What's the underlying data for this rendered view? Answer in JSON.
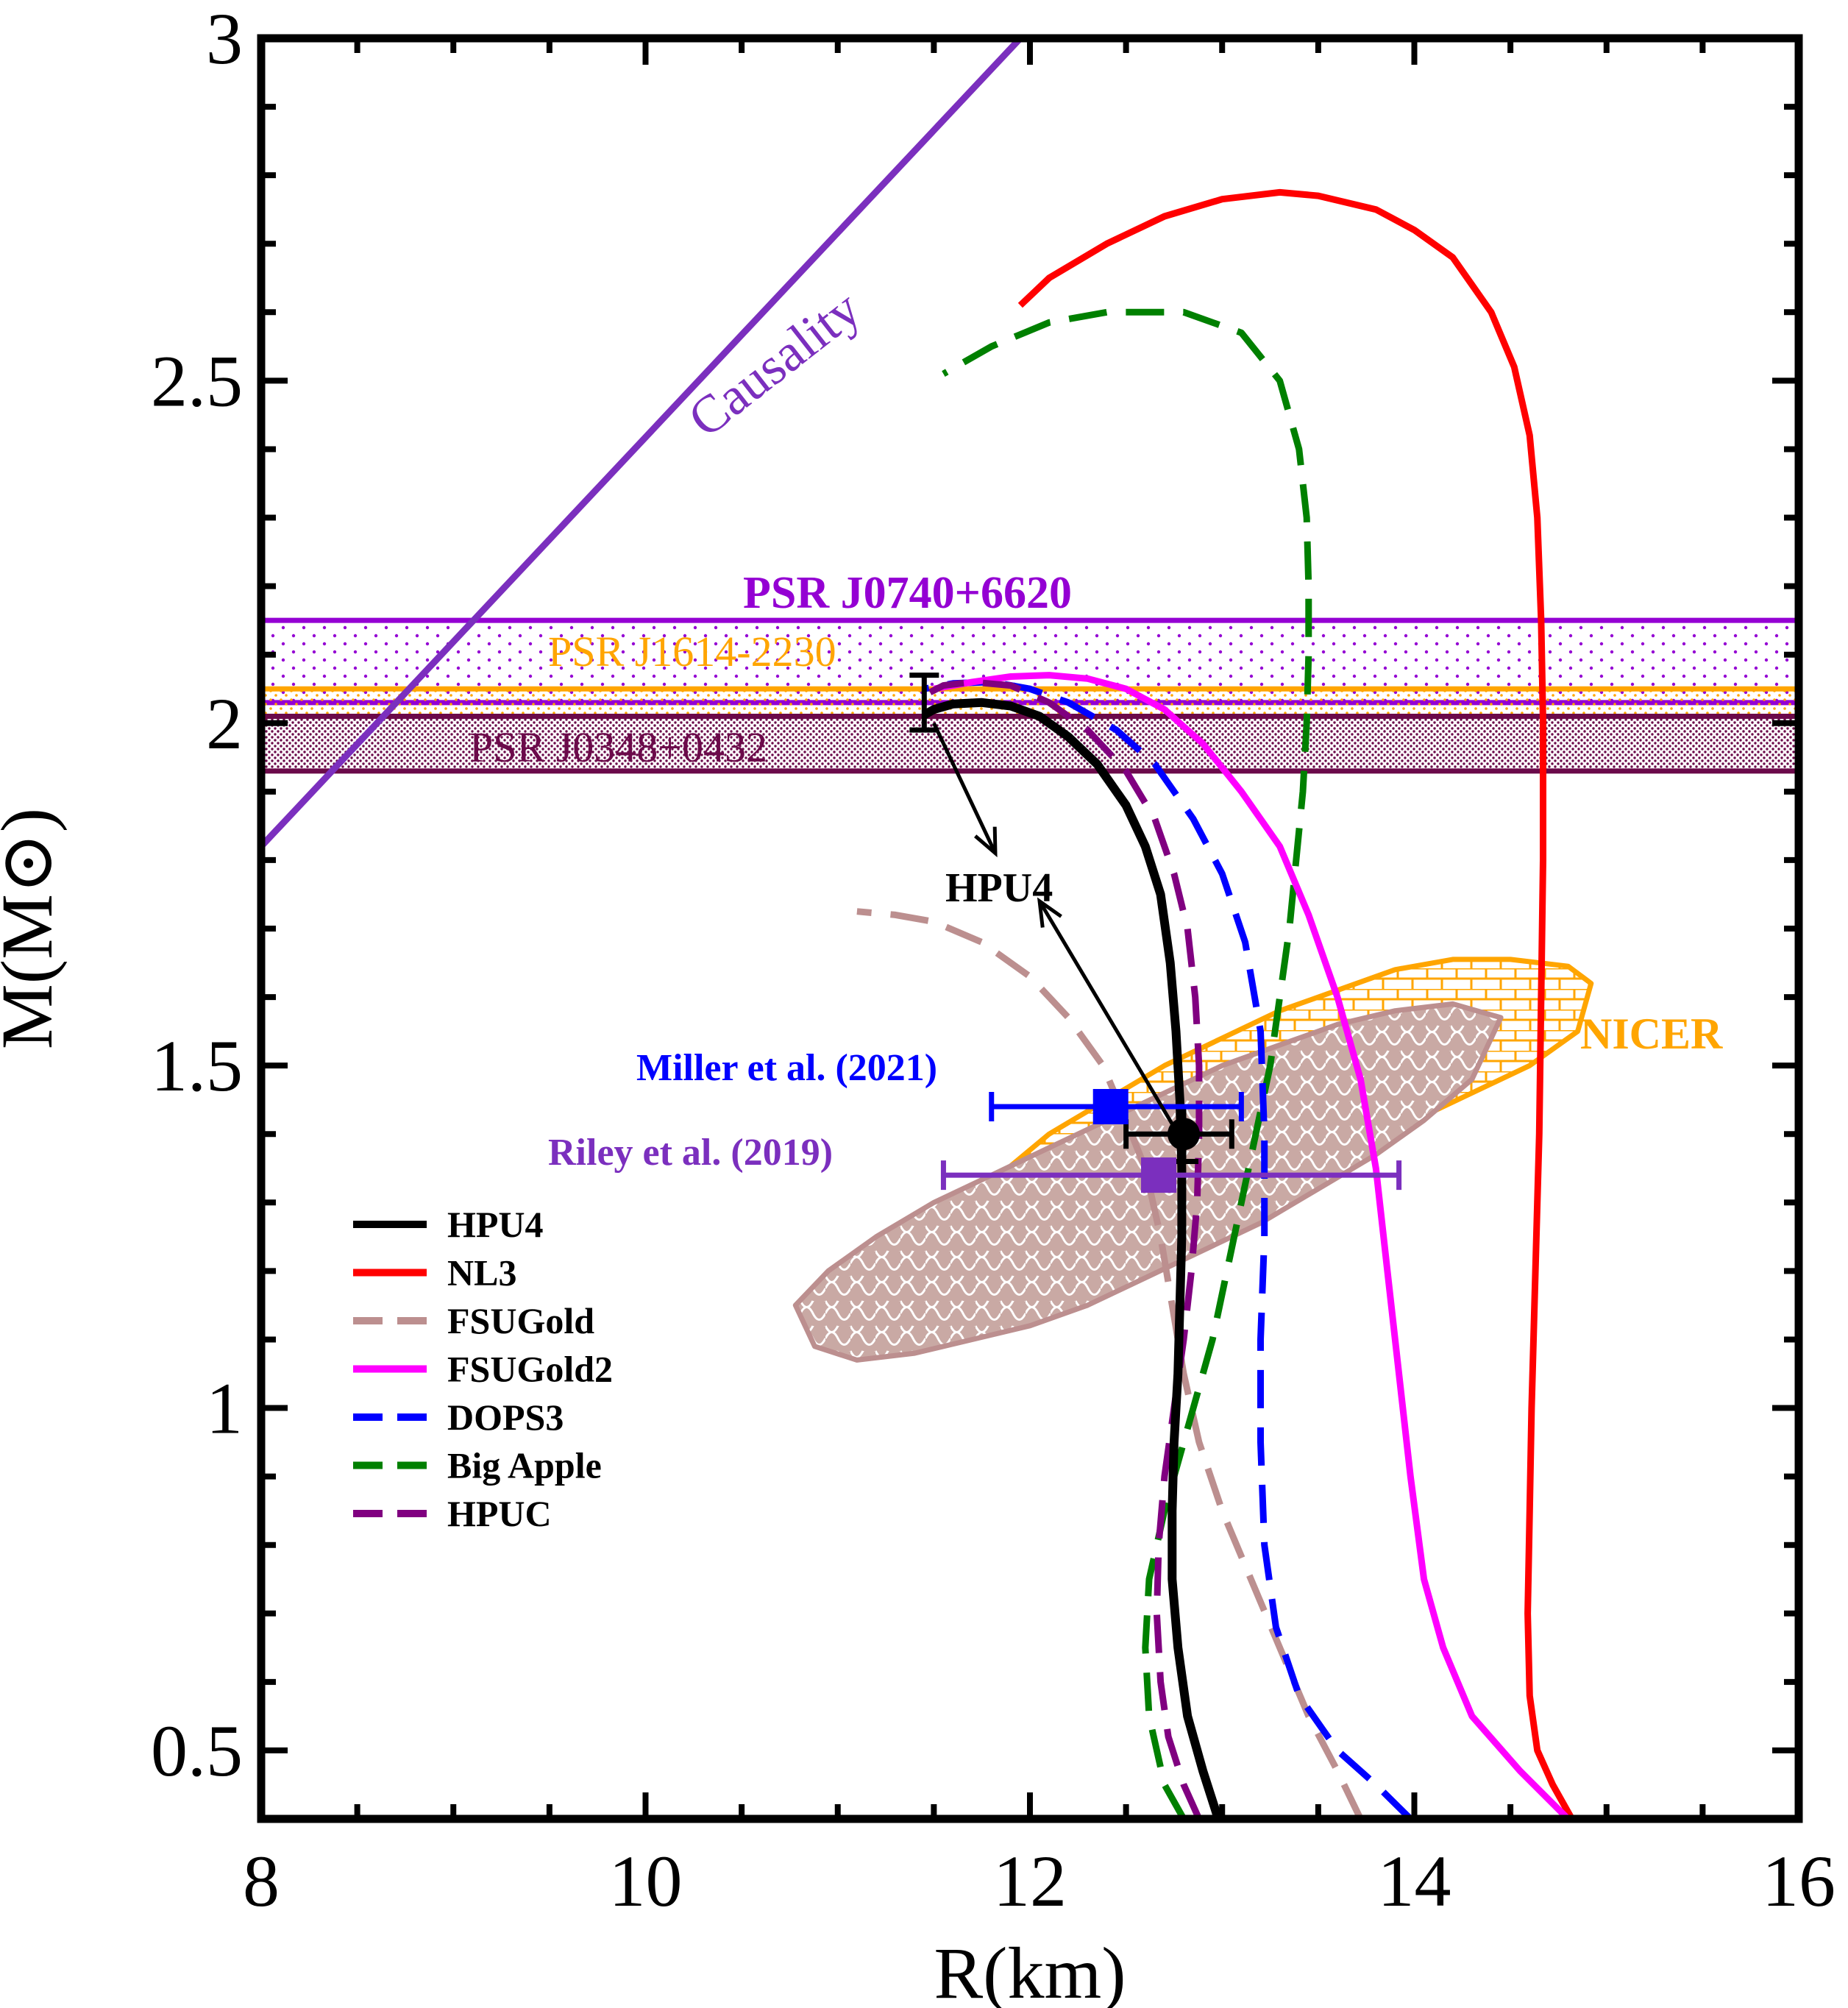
{
  "chart_data": {
    "type": "line",
    "xlabel": "R(km)",
    "ylabel": "M(M⊙)",
    "xlim": [
      8,
      16
    ],
    "ylim": [
      0.4,
      3.0
    ],
    "xticks": [
      "8",
      "10",
      "12",
      "14",
      "16"
    ],
    "yticks": [
      "0.5",
      "1",
      "1.5",
      "2",
      "2.5",
      "3"
    ],
    "grid": false,
    "legend_position": "bottom-left",
    "colors": {
      "HPU4": "#000000",
      "NL3": "#ff0000",
      "FSUGold": "#bc8f8f",
      "FSUGold2": "#ff00ff",
      "DOPS3": "#0000ff",
      "Big Apple": "#008000",
      "HPUC": "#800080",
      "causality": "#7b2fbe",
      "J0740": "#9400d3",
      "J1614": "#ffa500",
      "J0348": "#6b0a4a",
      "NICER": "#ffa500",
      "Miller": "#0000ff",
      "Riley": "#7b2fbe"
    },
    "series": [
      {
        "name": "HPU4",
        "style": "solid",
        "x": [
          12.98,
          12.9,
          12.82,
          12.77,
          12.74,
          12.74,
          12.75,
          12.77,
          12.78,
          12.79,
          12.79,
          12.78,
          12.76,
          12.73,
          12.68,
          12.6,
          12.5,
          12.35,
          12.2,
          12.05,
          11.9,
          11.75,
          11.6,
          11.5,
          11.45
        ],
        "y": [
          0.4,
          0.47,
          0.55,
          0.65,
          0.75,
          0.85,
          0.95,
          1.05,
          1.15,
          1.25,
          1.35,
          1.45,
          1.55,
          1.65,
          1.75,
          1.82,
          1.88,
          1.94,
          1.98,
          2.01,
          2.025,
          2.03,
          2.028,
          2.02,
          2.012
        ]
      },
      {
        "name": "NL3",
        "style": "solid",
        "x": [
          14.82,
          14.72,
          14.64,
          14.6,
          14.59,
          14.6,
          14.61,
          14.63,
          14.65,
          14.66,
          14.67,
          14.67,
          14.66,
          14.64,
          14.6,
          14.52,
          14.4,
          14.2,
          14.0,
          13.8,
          13.5,
          13.3,
          13.0,
          12.7,
          12.4,
          12.1,
          11.95
        ],
        "y": [
          0.4,
          0.45,
          0.5,
          0.58,
          0.7,
          0.85,
          1.0,
          1.2,
          1.4,
          1.6,
          1.8,
          2.0,
          2.15,
          2.3,
          2.42,
          2.52,
          2.6,
          2.68,
          2.72,
          2.75,
          2.77,
          2.775,
          2.765,
          2.74,
          2.7,
          2.65,
          2.61
        ]
      },
      {
        "name": "FSUGold",
        "style": "dashed",
        "x": [
          13.72,
          13.6,
          13.45,
          13.3,
          13.15,
          13.0,
          12.88,
          12.8,
          12.74,
          12.68,
          12.6,
          12.5,
          12.38,
          12.2,
          12.0,
          11.75,
          11.5,
          11.3,
          11.1
        ],
        "y": [
          0.4,
          0.47,
          0.55,
          0.65,
          0.75,
          0.85,
          0.95,
          1.05,
          1.15,
          1.25,
          1.35,
          1.42,
          1.5,
          1.57,
          1.63,
          1.68,
          1.71,
          1.72,
          1.725
        ]
      },
      {
        "name": "FSUGold2",
        "style": "solid",
        "x": [
          14.8,
          14.55,
          14.3,
          14.15,
          14.05,
          13.98,
          13.92,
          13.86,
          13.8,
          13.72,
          13.6,
          13.45,
          13.3,
          13.1,
          12.9,
          12.7,
          12.5,
          12.3,
          12.1,
          11.9,
          11.7,
          11.5
        ],
        "y": [
          0.4,
          0.47,
          0.55,
          0.65,
          0.75,
          0.9,
          1.05,
          1.2,
          1.35,
          1.48,
          1.6,
          1.72,
          1.82,
          1.9,
          1.97,
          2.02,
          2.05,
          2.065,
          2.07,
          2.068,
          2.06,
          2.05
        ]
      },
      {
        "name": "DOPS3",
        "style": "dashed",
        "x": [
          13.98,
          13.8,
          13.6,
          13.4,
          13.28,
          13.22,
          13.2,
          13.2,
          13.22,
          13.22,
          13.2,
          13.12,
          13.0,
          12.85,
          12.65,
          12.45,
          12.2,
          12.0,
          11.8,
          11.6,
          11.45
        ],
        "y": [
          0.4,
          0.45,
          0.5,
          0.58,
          0.68,
          0.8,
          0.95,
          1.1,
          1.25,
          1.4,
          1.55,
          1.68,
          1.78,
          1.86,
          1.94,
          1.99,
          2.03,
          2.05,
          2.06,
          2.058,
          2.05
        ]
      },
      {
        "name": "Big Apple",
        "style": "dashed",
        "x": [
          12.8,
          12.7,
          12.62,
          12.6,
          12.62,
          12.7,
          12.8,
          12.95,
          13.1,
          13.25,
          13.35,
          13.42,
          13.44,
          13.45,
          13.45,
          13.44,
          13.4,
          13.3,
          13.1,
          12.8,
          12.4,
          12.1,
          11.8,
          11.55
        ],
        "y": [
          0.4,
          0.45,
          0.55,
          0.65,
          0.75,
          0.85,
          0.95,
          1.1,
          1.3,
          1.5,
          1.7,
          1.9,
          2.0,
          2.1,
          2.2,
          2.3,
          2.4,
          2.5,
          2.57,
          2.6,
          2.6,
          2.585,
          2.55,
          2.51
        ]
      },
      {
        "name": "HPUC",
        "style": "dashed",
        "x": [
          12.88,
          12.8,
          12.72,
          12.68,
          12.66,
          12.67,
          12.7,
          12.75,
          12.8,
          12.84,
          12.87,
          12.88,
          12.88,
          12.86,
          12.82,
          12.75,
          12.65,
          12.5,
          12.3,
          12.1,
          11.9,
          11.7,
          11.55,
          11.48
        ],
        "y": [
          0.4,
          0.45,
          0.52,
          0.6,
          0.7,
          0.8,
          0.9,
          1.0,
          1.1,
          1.2,
          1.3,
          1.4,
          1.5,
          1.6,
          1.7,
          1.78,
          1.86,
          1.93,
          1.99,
          2.03,
          2.055,
          2.06,
          2.055,
          2.045
        ]
      }
    ],
    "causality_line": {
      "x": [
        8.0,
        11.95
      ],
      "y": [
        1.82,
        3.0
      ]
    },
    "bands": [
      {
        "key": "J0740",
        "label": "PSR J0740+6620",
        "ymin": 2.03,
        "ymax": 2.15
      },
      {
        "key": "J1614",
        "label": "PSR J1614-2230",
        "ymin": 2.01,
        "ymax": 2.05
      },
      {
        "key": "J0348",
        "label": "PSR J0348+0432",
        "ymin": 1.93,
        "ymax": 2.01
      }
    ],
    "regions": [
      {
        "key": "NICER",
        "label": "NICER",
        "x": [
          11.2,
          11.5,
          11.8,
          12.1,
          12.4,
          12.7,
          13.0,
          13.3,
          13.6,
          13.9,
          14.2,
          14.5,
          14.8,
          14.92,
          14.85,
          14.6,
          14.3,
          14.0,
          13.7,
          13.4,
          13.1,
          12.8,
          12.5,
          12.2,
          11.9,
          11.6,
          11.4,
          11.2
        ],
        "y": [
          1.2,
          1.27,
          1.33,
          1.4,
          1.45,
          1.5,
          1.54,
          1.58,
          1.61,
          1.64,
          1.655,
          1.655,
          1.645,
          1.62,
          1.55,
          1.5,
          1.46,
          1.42,
          1.38,
          1.35,
          1.32,
          1.29,
          1.26,
          1.24,
          1.22,
          1.2,
          1.19,
          1.2
        ]
      },
      {
        "key": "Riley",
        "label": "",
        "x": [
          10.78,
          10.95,
          11.2,
          11.5,
          11.8,
          12.1,
          12.4,
          12.7,
          13.0,
          13.3,
          13.6,
          13.9,
          14.2,
          14.45,
          14.3,
          14.05,
          13.8,
          13.5,
          13.2,
          12.9,
          12.6,
          12.3,
          12.0,
          11.7,
          11.4,
          11.1,
          10.88,
          10.78
        ],
        "y": [
          1.15,
          1.2,
          1.25,
          1.3,
          1.34,
          1.38,
          1.42,
          1.46,
          1.5,
          1.53,
          1.56,
          1.58,
          1.59,
          1.57,
          1.48,
          1.42,
          1.37,
          1.32,
          1.27,
          1.23,
          1.19,
          1.15,
          1.12,
          1.1,
          1.08,
          1.07,
          1.09,
          1.15
        ]
      }
    ],
    "points": [
      {
        "key": "HPU4_max",
        "x": 11.45,
        "y": 2.03,
        "ylow": 1.99,
        "yhigh": 2.07,
        "shape": "none"
      },
      {
        "key": "HPU4_1.4",
        "x": 12.8,
        "y": 1.4,
        "xlow": 12.5,
        "xhigh": 13.05,
        "ylow": 1.36,
        "yhigh": 1.44,
        "shape": "circle"
      },
      {
        "key": "Miller",
        "label": "Miller et  al. (2021)",
        "x": 12.42,
        "y": 1.44,
        "xlow": 11.8,
        "xhigh": 13.1,
        "shape": "square"
      },
      {
        "key": "Riley",
        "label": "Riley et  al. (2019)",
        "x": 12.67,
        "y": 1.34,
        "xlow": 11.55,
        "xhigh": 13.92,
        "shape": "square"
      }
    ],
    "annotations": {
      "causality": "Causality",
      "hpu4_label": "HPU4",
      "nicer": "NICER"
    }
  }
}
